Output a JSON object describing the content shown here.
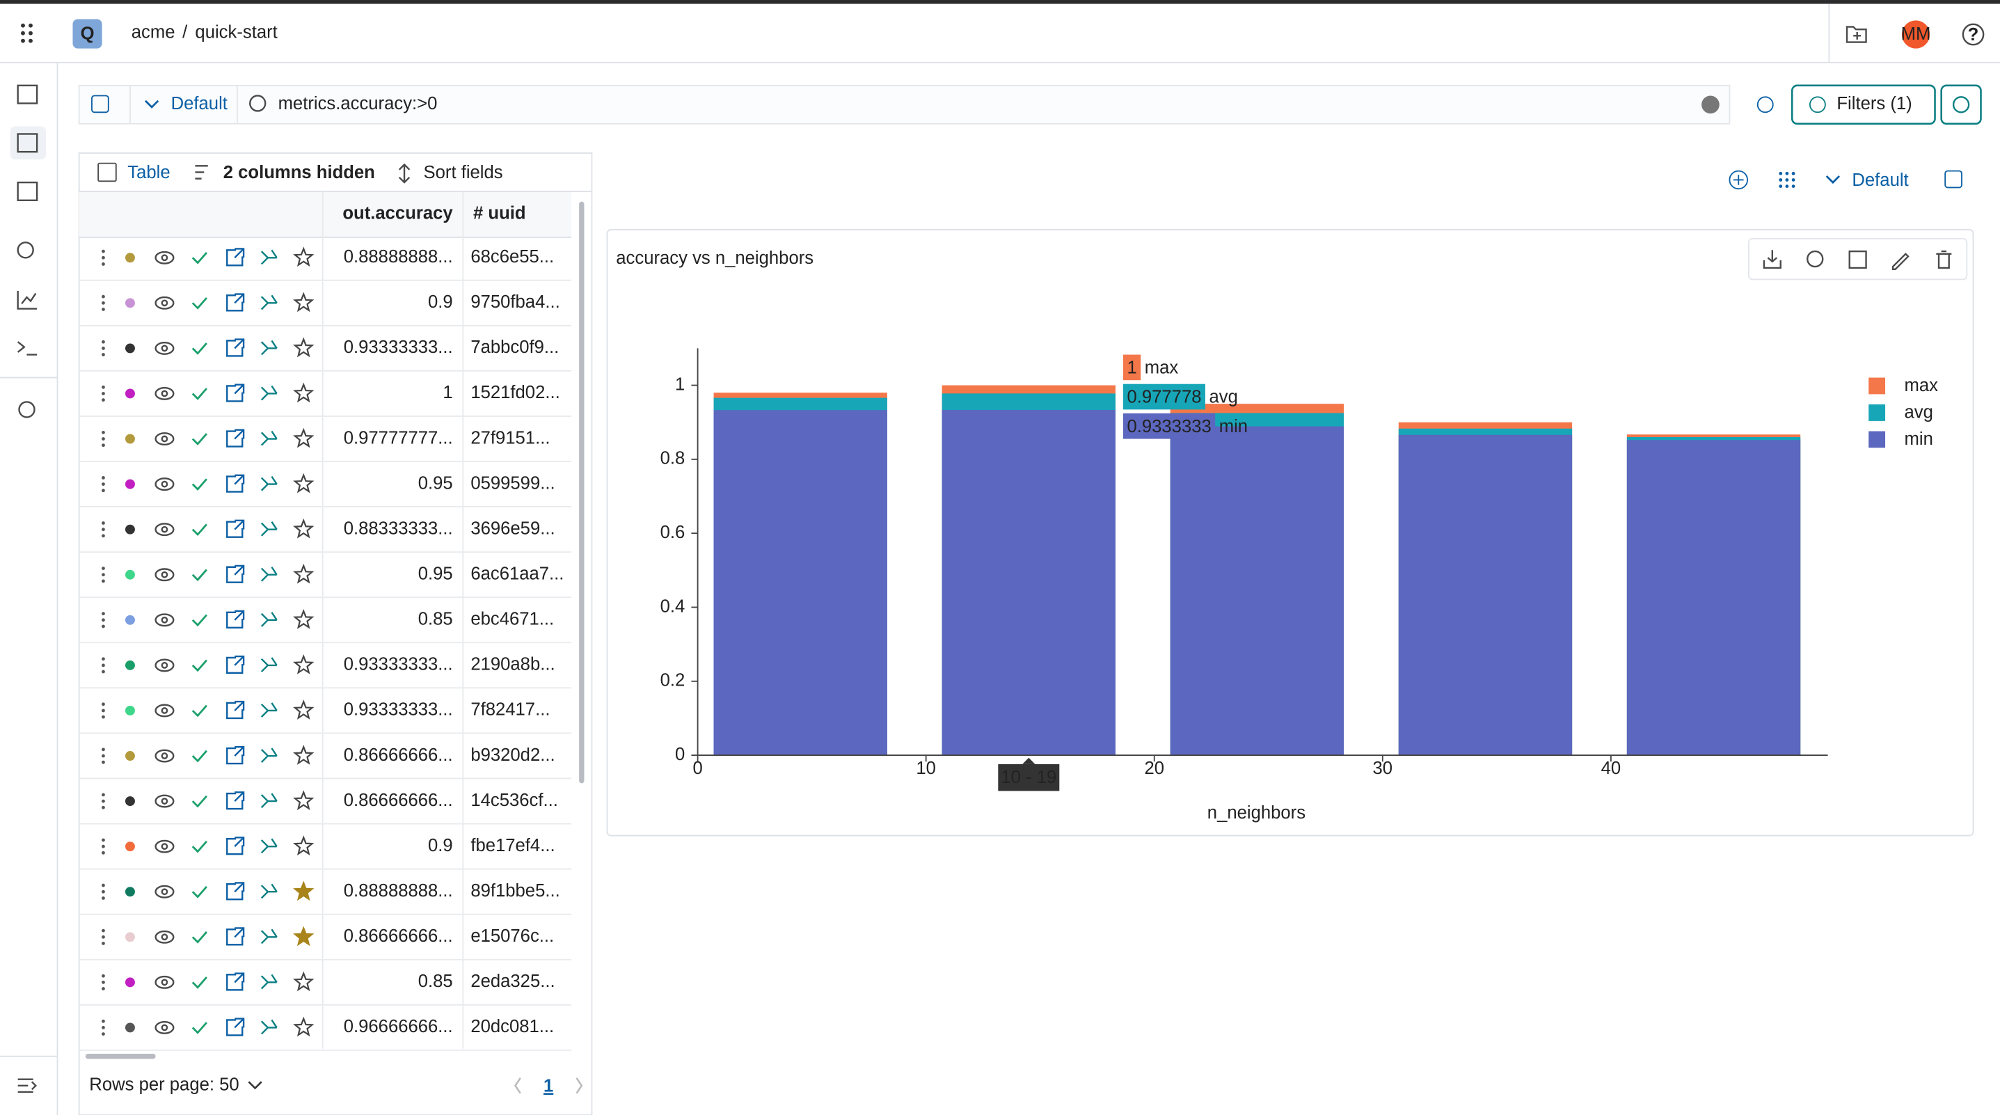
{
  "header": {
    "logo": "Q",
    "org": "acme",
    "separator": "/",
    "project": "quick-start",
    "avatar": "MM"
  },
  "toolbar": {
    "view": "Default",
    "query": "metrics.accuracy:>0",
    "filters": "Filters (1)"
  },
  "table": {
    "tabs": [
      "Table",
      "2 columns hidden",
      "Sort fields"
    ],
    "columns": [
      "out.accuracy",
      "# uuid"
    ],
    "rows": [
      [
        "0.88888888...",
        "68c6e55..."
      ],
      [
        "0.9",
        "9750fba4..."
      ],
      [
        "0.93333333...",
        "7abbc0f9..."
      ],
      [
        "1",
        "1521fd02..."
      ],
      [
        "0.97777777...",
        "27f9151..."
      ],
      [
        "0.95",
        "0599599..."
      ],
      [
        "0.88333333...",
        "3696e59..."
      ],
      [
        "0.95",
        "6ac61aa7..."
      ],
      [
        "0.85",
        "ebc4671..."
      ],
      [
        "0.93333333...",
        "2190a8b..."
      ],
      [
        "0.93333333...",
        "7f82417..."
      ],
      [
        "0.86666666...",
        "b9320d2..."
      ],
      [
        "0.86666666...",
        "14c536cf..."
      ],
      [
        "0.9",
        "fbe17ef4..."
      ],
      [
        "0.88888888...",
        "89f1bbe5..."
      ],
      [
        "0.86666666...",
        "e15076c..."
      ],
      [
        "0.85",
        "2eda325..."
      ],
      [
        "0.96666666...",
        "20dc081..."
      ]
    ],
    "row_colors": [
      "#b39a3c",
      "#c893d4",
      "#333333",
      "#c21fc2",
      "#b39a3c",
      "#c21fc2",
      "#333333",
      "#3ed68a",
      "#7b9fe0",
      "#1a9f6a",
      "#3ed68a",
      "#b39a3c",
      "#333333",
      "#f26b3a",
      "#0f7a5f",
      "#e8ccd0",
      "#c21fc2",
      "#555555"
    ],
    "starred": [
      false,
      false,
      false,
      false,
      false,
      false,
      false,
      false,
      false,
      false,
      false,
      false,
      false,
      false,
      true,
      true,
      false,
      false
    ],
    "rows_per_page": "Rows per page: 50",
    "page": "1"
  },
  "panel": {
    "view": "Default"
  },
  "chart_data": {
    "type": "bar",
    "title": "accuracy vs n_neighbors",
    "x_label": "n_neighbors",
    "x": [
      4.5,
      14.5,
      24.5,
      34.5,
      44.5
    ],
    "series": [
      {
        "name": "max",
        "color": "#f4774a",
        "values": [
          0.98,
          1,
          0.95,
          0.9,
          0.867
        ]
      },
      {
        "name": "avg",
        "color": "#17a6b8",
        "values": [
          0.966,
          0.977778,
          0.925,
          0.883,
          0.86
        ]
      },
      {
        "name": "min",
        "color": "#5c67bf",
        "values": [
          0.933,
          0.9333333,
          0.889,
          0.866,
          0.852
        ]
      }
    ],
    "xlim": [
      0,
      49.5
    ],
    "xticks": [
      0,
      10,
      20,
      30,
      40
    ],
    "ylim": [
      0,
      1.1
    ],
    "yticks": [
      0,
      0.2,
      0.4,
      0.6,
      0.8,
      1
    ],
    "hover_label": "10 - 19",
    "legend": "right"
  }
}
